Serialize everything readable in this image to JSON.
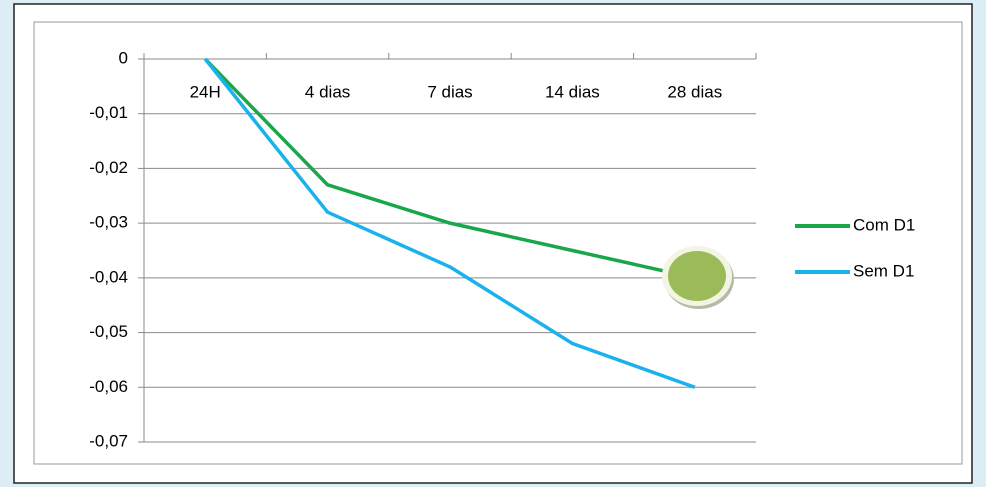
{
  "chart_data": {
    "type": "line",
    "categories": [
      "24H",
      "4 dias",
      "7 dias",
      "14 dias",
      "28 dias"
    ],
    "series": [
      {
        "name": "Com D1",
        "color": "#1aa64a",
        "values": [
          0,
          -0.023,
          -0.03,
          -0.035,
          -0.04
        ]
      },
      {
        "name": "Sem D1",
        "color": "#1ab2ec",
        "values": [
          0,
          -0.028,
          -0.038,
          -0.052,
          -0.06
        ]
      }
    ],
    "ylim": [
      -0.07,
      0
    ],
    "yticks": [
      0,
      -0.01,
      -0.02,
      -0.03,
      -0.04,
      -0.05,
      -0.06,
      -0.07
    ],
    "ytick_labels": [
      "0",
      "-0,01",
      "-0,02",
      "-0,03",
      "-0,04",
      "-0,05",
      "-0,06",
      "-0,07"
    ],
    "grid": true,
    "legend": "right"
  }
}
